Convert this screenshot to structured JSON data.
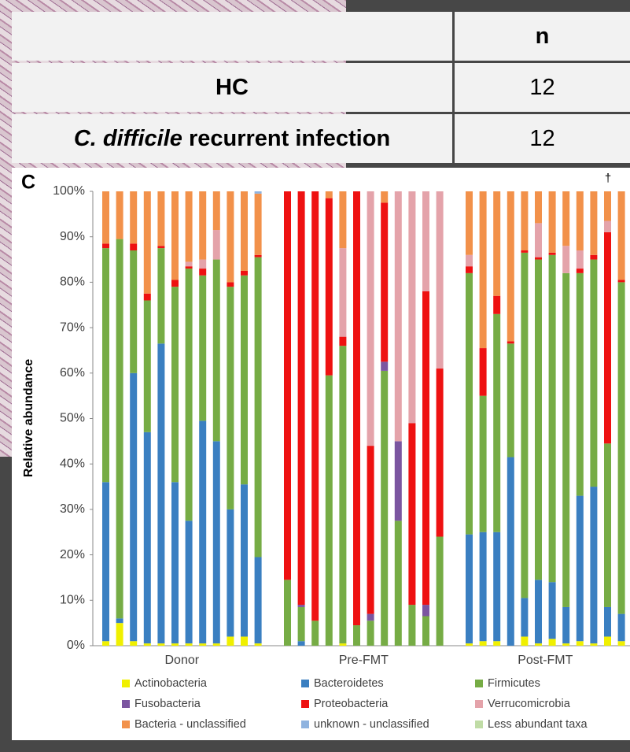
{
  "table": {
    "columns": [
      "n"
    ],
    "rows": [
      [
        "HC",
        12
      ],
      [
        [
          "C. difficile",
          "recurrent infection"
        ],
        12
      ]
    ]
  },
  "chart_data": {
    "type": "bar",
    "stacked": true,
    "panel_label": "C",
    "annotation": "†",
    "ylabel": "Relative abundance",
    "groups": [
      "Donor",
      "Pre-FMT",
      "Post-FMT"
    ],
    "categories": [
      null,
      null,
      null,
      null,
      null,
      null,
      null,
      null,
      null,
      null,
      null,
      null,
      null,
      null,
      null,
      null,
      null,
      null,
      null,
      null,
      null,
      null,
      null,
      null,
      null,
      null,
      null,
      null,
      null,
      null,
      null,
      null,
      null,
      null,
      null,
      null
    ],
    "ylim": [
      0,
      100
    ],
    "yticks": [
      {
        "value": 0,
        "label": "0%"
      },
      {
        "value": 10,
        "label": "10%"
      },
      {
        "value": 20,
        "label": "20%"
      },
      {
        "value": 30,
        "label": "30%"
      },
      {
        "value": 40,
        "label": "40%"
      },
      {
        "value": 50,
        "label": "50%"
      },
      {
        "value": 60,
        "label": "60%"
      },
      {
        "value": 70,
        "label": "70%"
      },
      {
        "value": 80,
        "label": "80%"
      },
      {
        "value": 90,
        "label": "90%"
      },
      {
        "value": 100,
        "label": "100%"
      }
    ],
    "series": [
      {
        "name": "Actinobacteria",
        "color": "#f0f000",
        "values": [
          1,
          5,
          1,
          0.5,
          0.5,
          0.5,
          0.5,
          0.5,
          0.5,
          2,
          2,
          0.5,
          0,
          0,
          0,
          0,
          0.5,
          0,
          0,
          0,
          0,
          0,
          0,
          0,
          0.5,
          1,
          1,
          0,
          2,
          0.5,
          1.5,
          0.5,
          1,
          0.5,
          2,
          1
        ]
      },
      {
        "name": "Bacteroidetes",
        "color": "#3a7fc1",
        "values": [
          35,
          1,
          59,
          46.5,
          66,
          35.5,
          27,
          49,
          44.5,
          28,
          33.5,
          19,
          0,
          1,
          0,
          0,
          0,
          0,
          0,
          0,
          0,
          0,
          0,
          0,
          24,
          24,
          24,
          41.5,
          8.5,
          14,
          12.5,
          8,
          32,
          34.5,
          6.5,
          6
        ]
      },
      {
        "name": "Firmicutes",
        "color": "#76ac45",
        "values": [
          51.5,
          83.5,
          27,
          29,
          21,
          43,
          55.5,
          32,
          40,
          49,
          46,
          66,
          14.5,
          7.5,
          5.5,
          59.5,
          65.5,
          4.5,
          5.5,
          60.5,
          27.5,
          9,
          6.5,
          24,
          57.5,
          30,
          48,
          25,
          76,
          70.5,
          72,
          73.5,
          49,
          50,
          36,
          73
        ]
      },
      {
        "name": "Fusobacteria",
        "color": "#7b55a0",
        "values": [
          0,
          0,
          0,
          0,
          0,
          0,
          0,
          0,
          0,
          0,
          0,
          0,
          0,
          0.5,
          0,
          0,
          0,
          0,
          1.5,
          2,
          17.5,
          0,
          2.5,
          0,
          0,
          0,
          0,
          0,
          0,
          0,
          0,
          0,
          0,
          0,
          0,
          0
        ]
      },
      {
        "name": "Proteobacteria",
        "color": "#ee1111",
        "values": [
          1,
          0,
          1.5,
          1.5,
          0.5,
          1.5,
          0.5,
          1.5,
          0,
          1,
          1,
          0.5,
          85.5,
          91,
          94.5,
          39,
          2,
          95.5,
          37,
          35,
          0,
          40,
          69,
          37,
          1.5,
          10.5,
          4,
          0.5,
          0.5,
          0.5,
          0.5,
          0,
          1,
          1,
          46.5,
          0.5
        ]
      },
      {
        "name": "Verrucomicrobia",
        "color": "#e4a3aa",
        "values": [
          0,
          0,
          0,
          0,
          0,
          0,
          1,
          2,
          6.5,
          0,
          0,
          0,
          0,
          0,
          0,
          0,
          19.5,
          0,
          56,
          0,
          55,
          51,
          22,
          39,
          2.5,
          0,
          0,
          0,
          0,
          7.5,
          0,
          6,
          4,
          0,
          2.5,
          0
        ]
      },
      {
        "name": "Bacteria - unclassified",
        "color": "#f2914a",
        "values": [
          11.5,
          10.5,
          11.5,
          22.5,
          12,
          19.5,
          15.5,
          15,
          8.5,
          20,
          17.5,
          13.5,
          0,
          0,
          0,
          1.5,
          12.5,
          0,
          0,
          2.5,
          0,
          0,
          0,
          0,
          14,
          34.5,
          23,
          33,
          13,
          7,
          13.5,
          12,
          13,
          14,
          6.5,
          19.5
        ]
      },
      {
        "name": "unknown - unclassified",
        "color": "#8fb3df",
        "values": [
          0,
          0,
          0,
          0,
          0,
          0,
          0,
          0,
          0,
          0,
          0,
          0.5,
          0,
          0,
          0,
          0,
          0,
          0,
          0,
          0,
          0,
          0,
          0,
          0,
          0,
          0,
          0,
          0,
          0,
          0,
          0,
          0,
          0,
          0,
          0,
          0
        ]
      },
      {
        "name": "Less abundant taxa",
        "color": "#c0dca6",
        "values": [
          0,
          0,
          0,
          0,
          0,
          0,
          0,
          0,
          0,
          0,
          0,
          0,
          0,
          0,
          0,
          0,
          0,
          0,
          0,
          0,
          0,
          0,
          0,
          0,
          0,
          0,
          0,
          0,
          0,
          0,
          0,
          0,
          0,
          0,
          0,
          0
        ]
      }
    ]
  }
}
